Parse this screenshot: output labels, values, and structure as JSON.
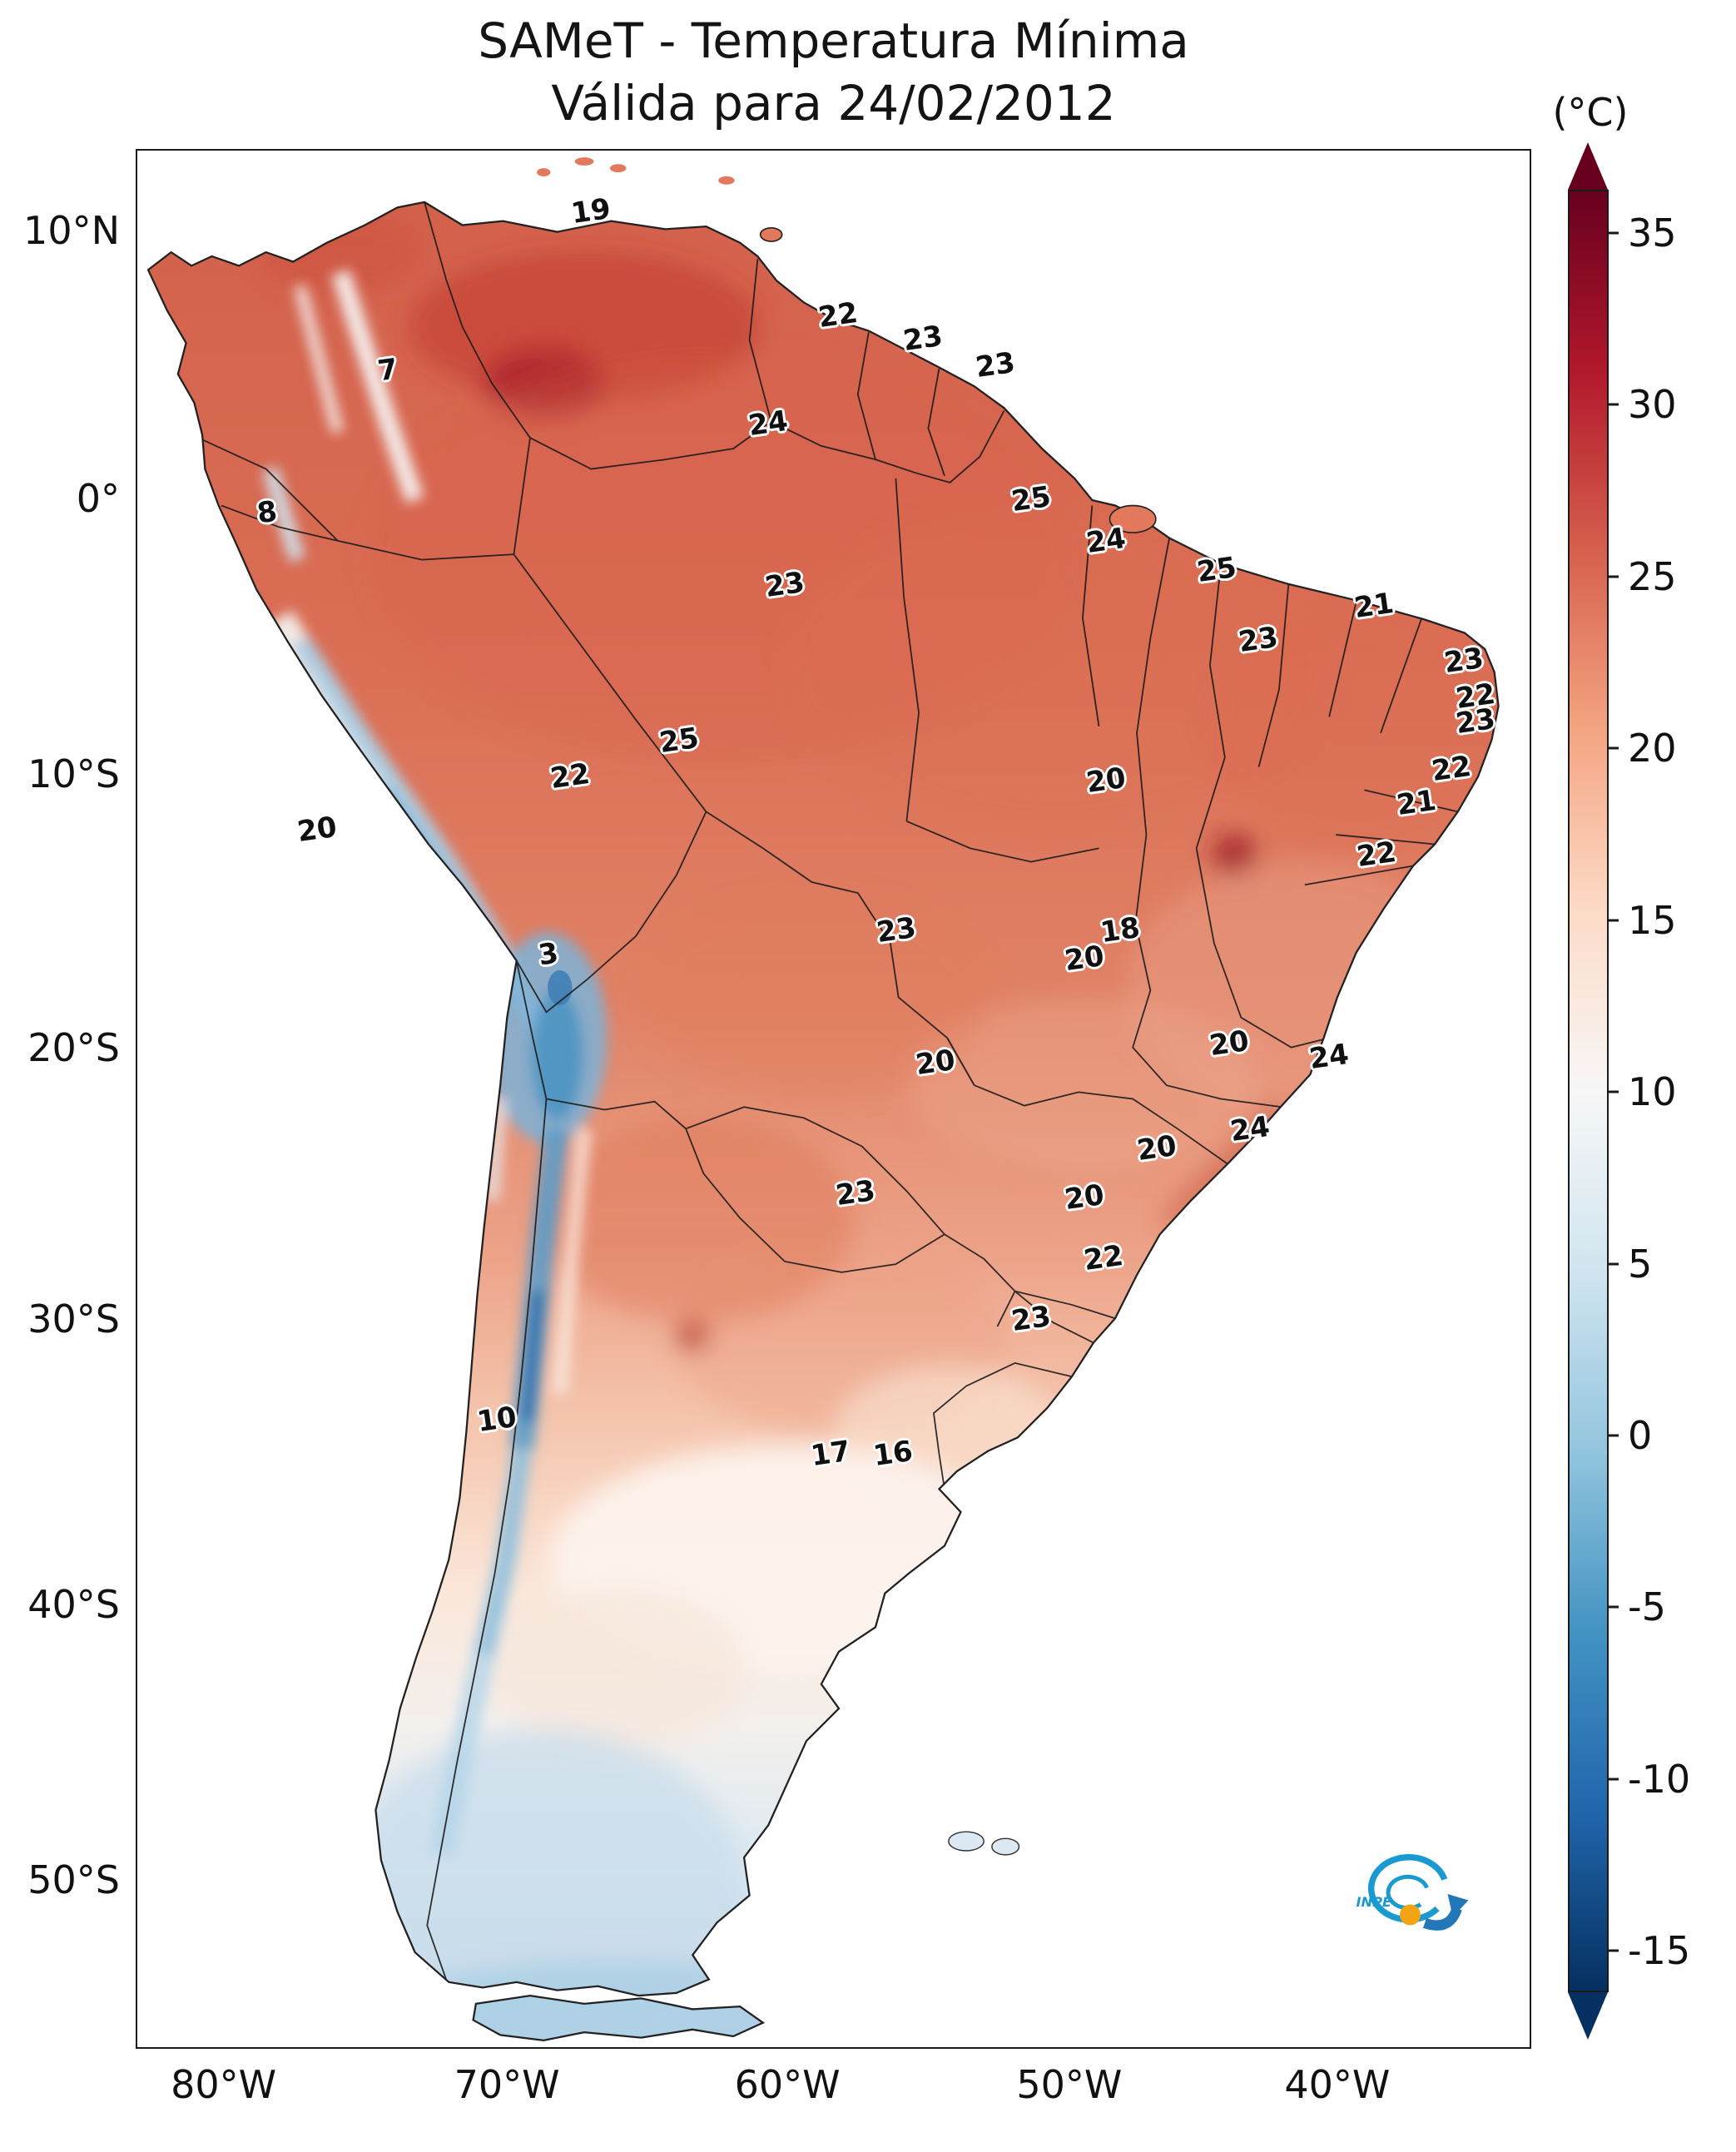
{
  "title": {
    "line1": "SAMeT - Temperatura Mínima",
    "line2": "Válida para 24/02/2012"
  },
  "colorbar": {
    "unit_label": "(°C)",
    "ticks": [
      "35",
      "30",
      "25",
      "20",
      "15",
      "10",
      "5",
      "0",
      "-5",
      "-10",
      "-15"
    ],
    "gradient": [
      "#67001f",
      "#b2182b",
      "#d6604d",
      "#f4a582",
      "#fddbc7",
      "#f7f7f7",
      "#d1e5f0",
      "#92c5de",
      "#4393c3",
      "#2166ac",
      "#053061"
    ],
    "arrow_top": "#67001f",
    "arrow_bottom": "#053061"
  },
  "axes": {
    "latitude_ticks": [
      {
        "label": "10°N",
        "y": 4.3
      },
      {
        "label": "0°",
        "y": 18.4
      },
      {
        "label": "10°S",
        "y": 32.9
      },
      {
        "label": "20°S",
        "y": 47.3
      },
      {
        "label": "30°S",
        "y": 61.6
      },
      {
        "label": "40°S",
        "y": 76.6
      },
      {
        "label": "50°S",
        "y": 91.1
      }
    ],
    "longitude_ticks": [
      {
        "label": "80°W",
        "x": 6.3
      },
      {
        "label": "70°W",
        "x": 26.6
      },
      {
        "label": "60°W",
        "x": 46.7
      },
      {
        "label": "50°W",
        "x": 66.9
      },
      {
        "label": "40°W",
        "x": 86.1
      }
    ]
  },
  "chart_data": {
    "type": "heatmap",
    "subtype": "geographic-temperature-map",
    "variable": "Temperatura Mínima",
    "unit": "°C",
    "date": "24/02/2012",
    "region": "South America",
    "scale": {
      "min": -15,
      "max": 35
    },
    "stations": [
      {
        "value": 19,
        "x": 32.6,
        "y": 3.2
      },
      {
        "value": 22,
        "x": 50.3,
        "y": 8.7
      },
      {
        "value": 23,
        "x": 56.4,
        "y": 9.9
      },
      {
        "value": 23,
        "x": 61.6,
        "y": 11.3
      },
      {
        "value": 7,
        "x": 18.0,
        "y": 11.6
      },
      {
        "value": 24,
        "x": 45.3,
        "y": 14.4
      },
      {
        "value": 25,
        "x": 64.2,
        "y": 18.4
      },
      {
        "value": 8,
        "x": 9.3,
        "y": 19.1
      },
      {
        "value": 24,
        "x": 69.6,
        "y": 20.6
      },
      {
        "value": 25,
        "x": 77.5,
        "y": 22.1
      },
      {
        "value": 23,
        "x": 46.5,
        "y": 22.9
      },
      {
        "value": 21,
        "x": 88.8,
        "y": 24.0
      },
      {
        "value": 23,
        "x": 80.5,
        "y": 25.8
      },
      {
        "value": 23,
        "x": 95.3,
        "y": 26.9
      },
      {
        "value": 22,
        "x": 96.1,
        "y": 28.8
      },
      {
        "value": 23,
        "x": 96.1,
        "y": 30.1
      },
      {
        "value": 25,
        "x": 38.9,
        "y": 31.1
      },
      {
        "value": 22,
        "x": 94.4,
        "y": 32.6
      },
      {
        "value": 20,
        "x": 69.6,
        "y": 33.2
      },
      {
        "value": 22,
        "x": 31.1,
        "y": 33.0
      },
      {
        "value": 21,
        "x": 91.9,
        "y": 34.4
      },
      {
        "value": 20,
        "x": 12.9,
        "y": 35.8
      },
      {
        "value": 22,
        "x": 89.0,
        "y": 37.1
      },
      {
        "value": 23,
        "x": 54.5,
        "y": 41.1
      },
      {
        "value": 18,
        "x": 70.6,
        "y": 41.1
      },
      {
        "value": 3,
        "x": 29.5,
        "y": 42.4
      },
      {
        "value": 20,
        "x": 68.0,
        "y": 42.6
      },
      {
        "value": 20,
        "x": 78.4,
        "y": 47.1
      },
      {
        "value": 24,
        "x": 85.6,
        "y": 47.8
      },
      {
        "value": 20,
        "x": 57.3,
        "y": 48.1
      },
      {
        "value": 24,
        "x": 79.9,
        "y": 51.6
      },
      {
        "value": 20,
        "x": 73.2,
        "y": 52.6
      },
      {
        "value": 23,
        "x": 51.6,
        "y": 55.0
      },
      {
        "value": 20,
        "x": 68.0,
        "y": 55.2
      },
      {
        "value": 22,
        "x": 69.4,
        "y": 58.4
      },
      {
        "value": 23,
        "x": 64.2,
        "y": 61.6
      },
      {
        "value": 10,
        "x": 25.8,
        "y": 66.9
      },
      {
        "value": 17,
        "x": 49.8,
        "y": 68.7
      },
      {
        "value": 16,
        "x": 54.3,
        "y": 68.7
      }
    ]
  },
  "logo": {
    "label": "INPE",
    "blue": "#1b9ad2",
    "orange": "#f2a413"
  }
}
